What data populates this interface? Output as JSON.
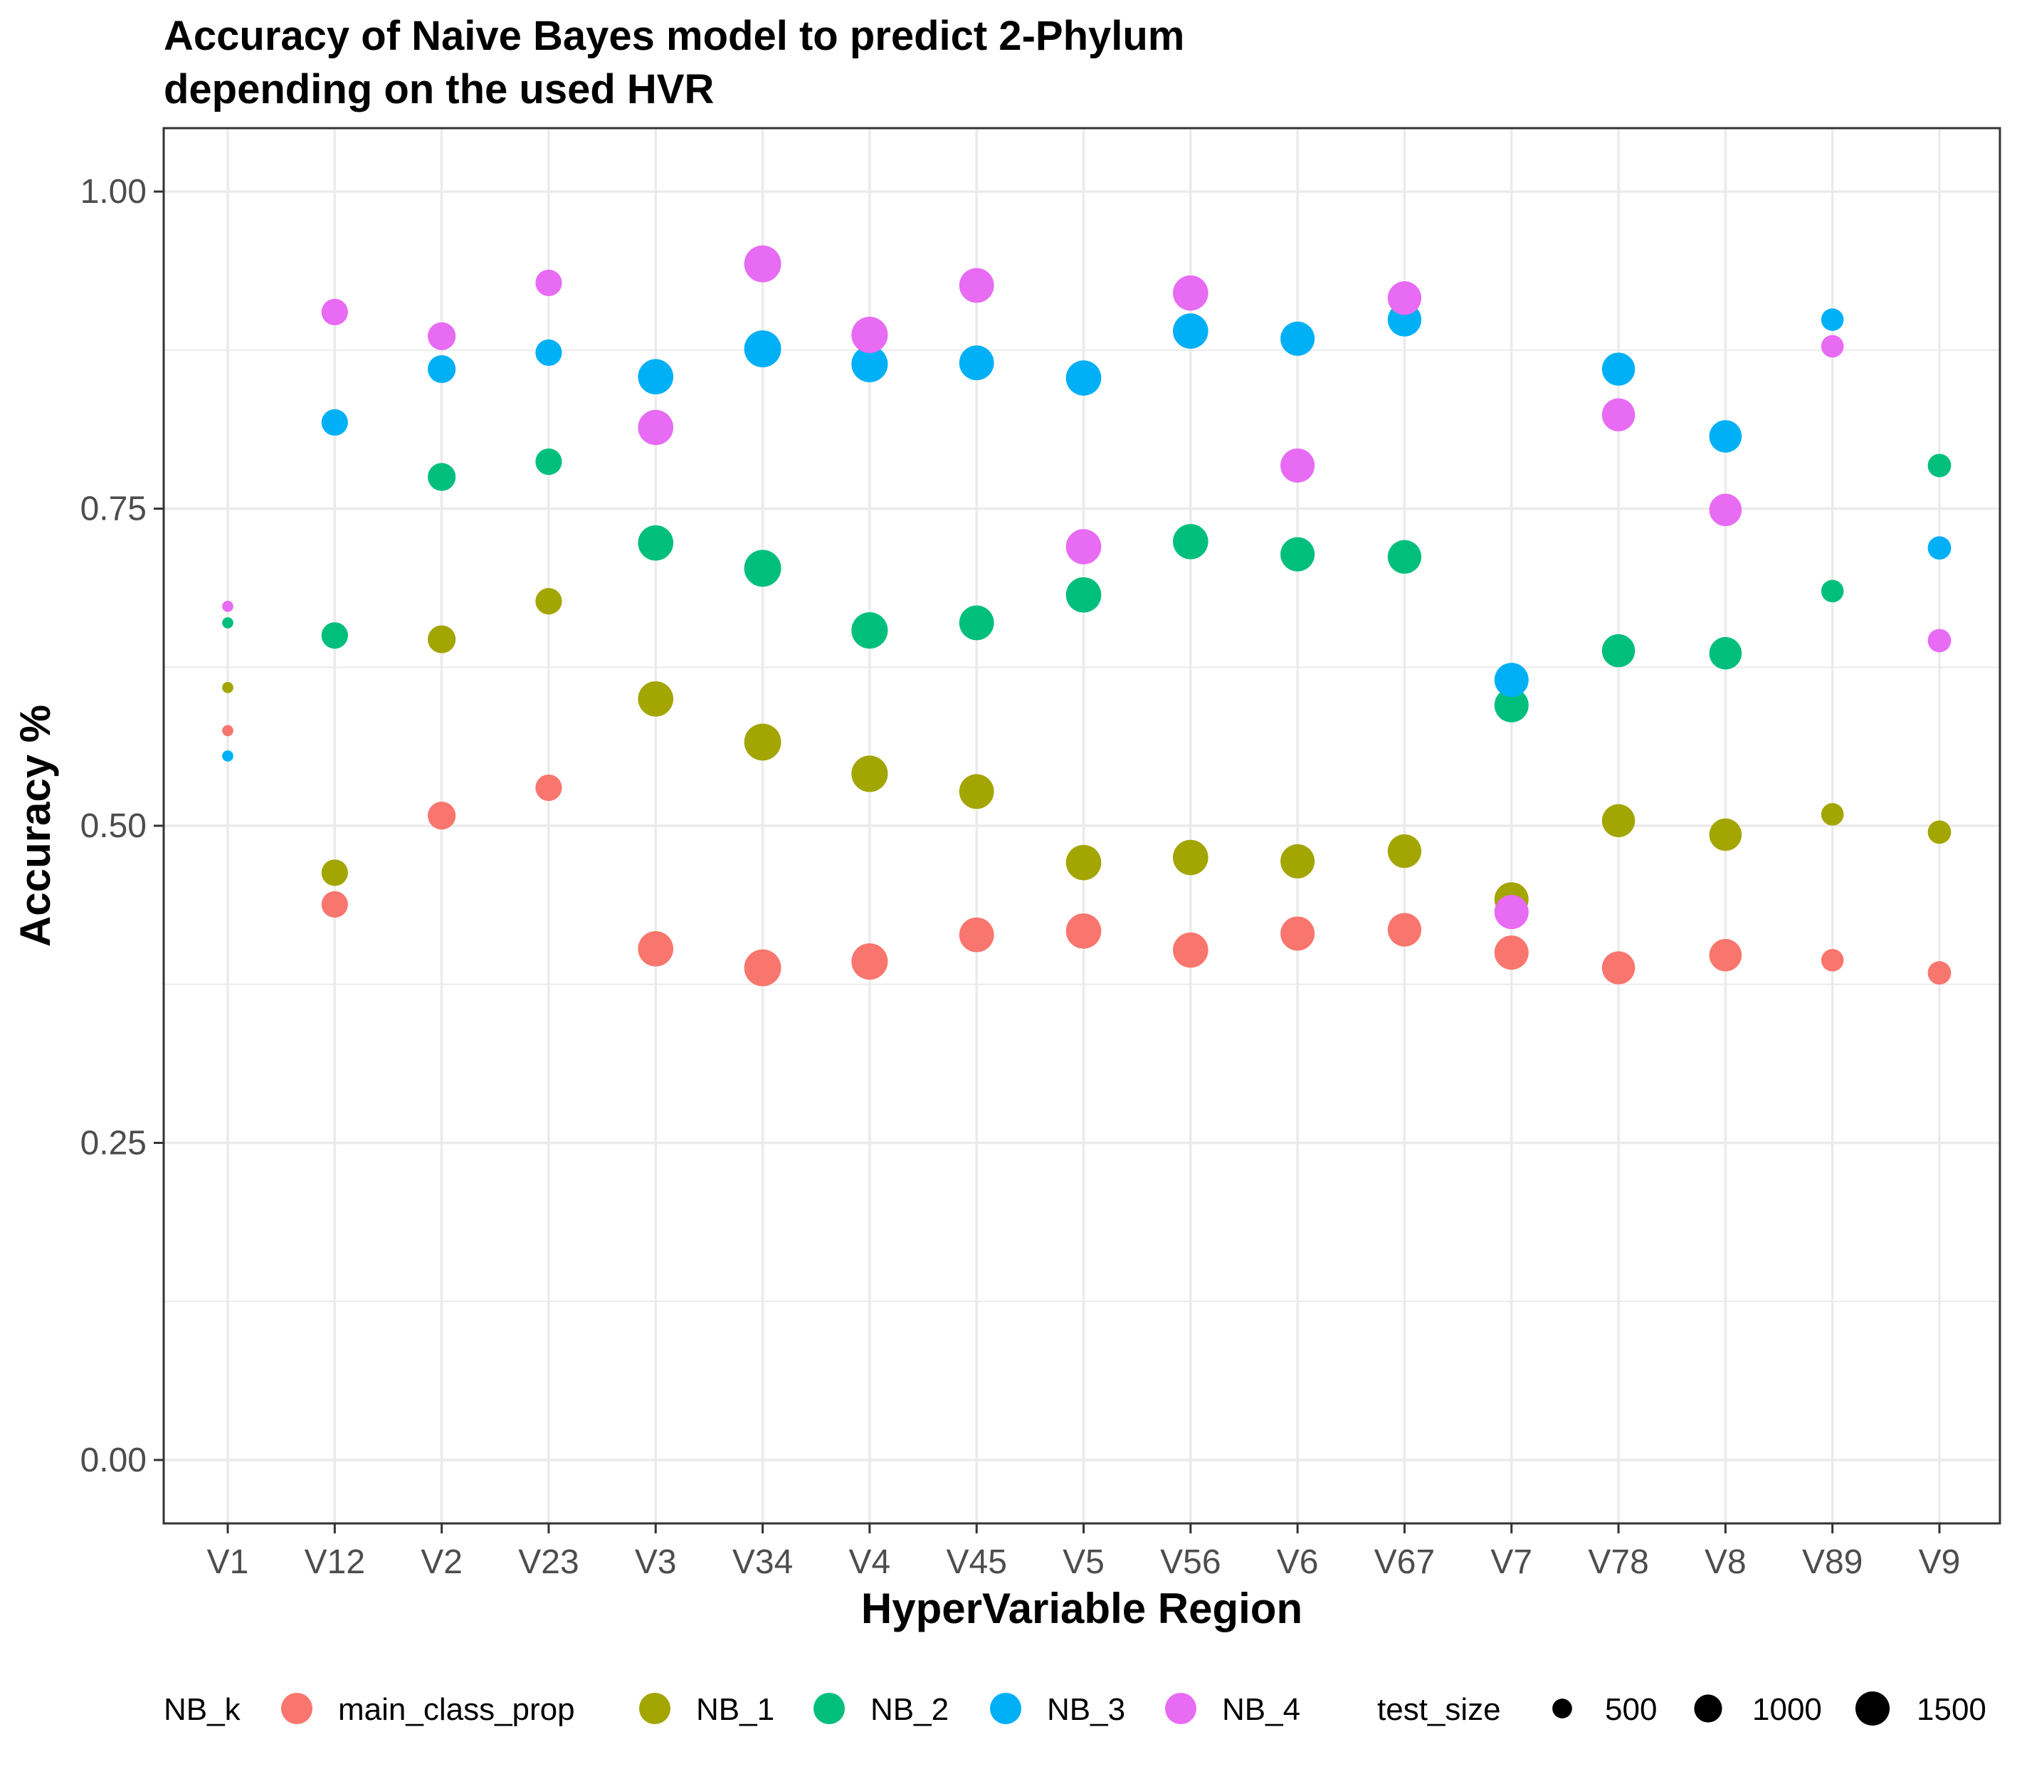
{
  "chart_data": {
    "type": "scatter",
    "title_lines": [
      "Accuracy of Naive Bayes model to predict 2-Phylum",
      "depending on the used HVR"
    ],
    "xlabel": "HyperVariable Region",
    "ylabel": "Accuracy %",
    "ylim": [
      -0.05,
      1.05
    ],
    "yticks": [
      0,
      0.25,
      0.5,
      0.75,
      1
    ],
    "ytick_labels": [
      "0.00",
      "0.25",
      "0.50",
      "0.75",
      "1.00"
    ],
    "grid": true,
    "legend_position": "bottom",
    "categories": [
      "V1",
      "V12",
      "V2",
      "V23",
      "V3",
      "V34",
      "V4",
      "V45",
      "V5",
      "V56",
      "V6",
      "V67",
      "V7",
      "V78",
      "V8",
      "V89",
      "V9"
    ],
    "test_size": [
      160,
      900,
      1000,
      900,
      1600,
      1750,
      1700,
      1550,
      1600,
      1600,
      1500,
      1450,
      1500,
      1400,
      1350,
      650,
      700
    ],
    "series": [
      {
        "name": "main_class_prop",
        "color": "#F8766D",
        "values": [
          0.575,
          0.438,
          0.508,
          0.53,
          0.403,
          0.388,
          0.393,
          0.414,
          0.417,
          0.402,
          0.415,
          0.418,
          0.4,
          0.388,
          0.398,
          0.394,
          0.384
        ]
      },
      {
        "name": "NB_1",
        "color": "#A3A500",
        "values": [
          0.609,
          0.463,
          0.647,
          0.677,
          0.6,
          0.566,
          0.541,
          0.527,
          0.471,
          0.475,
          0.472,
          0.48,
          0.442,
          0.504,
          0.493,
          0.509,
          0.495
        ]
      },
      {
        "name": "NB_2",
        "color": "#00BF7D",
        "values": [
          0.66,
          0.65,
          0.775,
          0.787,
          0.723,
          0.703,
          0.654,
          0.66,
          0.682,
          0.724,
          0.714,
          0.712,
          0.595,
          0.638,
          0.636,
          0.685,
          0.784
        ]
      },
      {
        "name": "NB_3",
        "color": "#00B0F6",
        "values": [
          0.555,
          0.818,
          0.86,
          0.873,
          0.854,
          0.876,
          0.864,
          0.865,
          0.853,
          0.89,
          0.884,
          0.899,
          0.615,
          0.86,
          0.807,
          0.899,
          0.719
        ]
      },
      {
        "name": "NB_4",
        "color": "#E76BF3",
        "values": [
          0.673,
          0.905,
          0.886,
          0.928,
          0.814,
          0.943,
          0.887,
          0.926,
          0.72,
          0.92,
          0.784,
          0.916,
          0.432,
          0.824,
          0.749,
          0.878,
          0.646
        ]
      }
    ],
    "legend": {
      "color_title": "NB_k",
      "size_title": "test_size",
      "size_breaks": [
        500,
        1000,
        1500
      ],
      "size_labels": [
        "500",
        "1000",
        "1500"
      ]
    }
  }
}
